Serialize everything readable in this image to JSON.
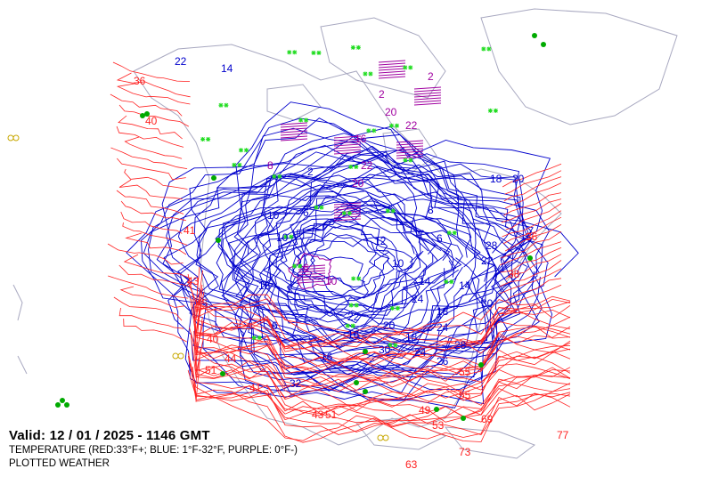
{
  "valid_line": "Valid: 12 / 01 / 2025  -  1146 GMT",
  "temperature_legend": "TEMPERATURE (RED:33°F+; BLUE: 1°F-32°F, PURPLE: 0°F-)",
  "plotted_weather": "PLOTTED WEATHER",
  "colors": {
    "warm": "#ff2020",
    "cold": "#0000cc",
    "very_cold": "#a000a0",
    "coastline": "#a8a8c0",
    "weather": "#00aa00",
    "snow": "#22dd22",
    "fog": "#c8a800"
  },
  "contour_labels": {
    "cold": [
      "22",
      "14",
      "10",
      "18",
      "6",
      "2",
      "10",
      "6",
      "14",
      "18",
      "8",
      "22",
      "6",
      "10",
      "18",
      "20",
      "14",
      "24",
      "28",
      "30",
      "26",
      "22",
      "12",
      "16",
      "16",
      "18",
      "24",
      "20",
      "28",
      "24",
      "30",
      "32"
    ],
    "very_cold": [
      "2",
      "20",
      "22",
      "16",
      "20",
      "22",
      "8",
      "6",
      "10",
      "2"
    ],
    "warm": [
      "40",
      "36",
      "41",
      "43",
      "45",
      "40",
      "44",
      "51",
      "41",
      "43",
      "55",
      "49",
      "51",
      "53",
      "55",
      "69",
      "77",
      "73",
      "63",
      "36",
      "38"
    ]
  }
}
